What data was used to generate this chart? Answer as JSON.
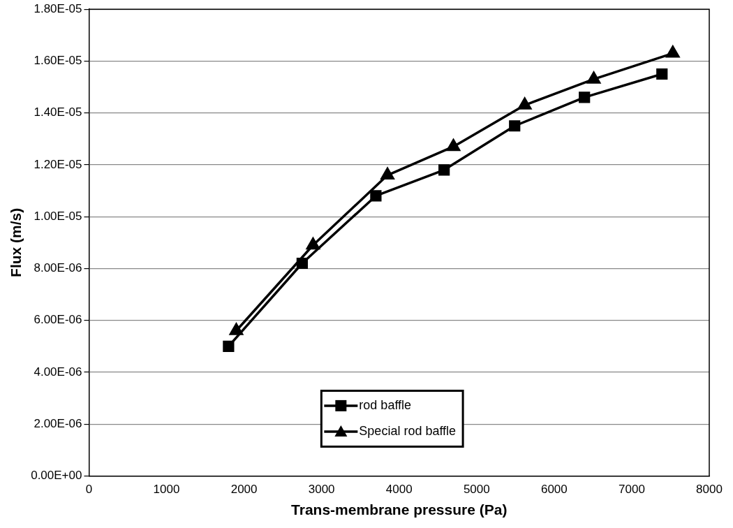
{
  "chart_data": {
    "type": "line",
    "xlabel": "Trans-membrane pressure (Pa)",
    "ylabel": "Flux (m/s)",
    "xlim": [
      0,
      8000
    ],
    "xticks": [
      0,
      1000,
      2000,
      3000,
      4000,
      5000,
      6000,
      7000,
      8000
    ],
    "ylim": [
      0,
      1.8e-05
    ],
    "yticks": [
      {
        "value": 0,
        "label": "0.00E+00"
      },
      {
        "value": 2e-06,
        "label": "2.00E-06"
      },
      {
        "value": 4e-06,
        "label": "4.00E-06"
      },
      {
        "value": 6e-06,
        "label": "6.00E-06"
      },
      {
        "value": 8e-06,
        "label": "8.00E-06"
      },
      {
        "value": 1e-05,
        "label": "1.00E-05"
      },
      {
        "value": 1.2e-05,
        "label": "1.20E-05"
      },
      {
        "value": 1.4e-05,
        "label": "1.40E-05"
      },
      {
        "value": 1.6e-05,
        "label": "1.60E-05"
      },
      {
        "value": 1.8e-05,
        "label": "1.80E-05"
      }
    ],
    "grid": "y",
    "legend": "bottom",
    "series": [
      {
        "name": "rod baffle",
        "color": "#000000",
        "marker": "square",
        "x": [
          1800,
          2750,
          3700,
          4580,
          5490,
          6390,
          7390
        ],
        "values": [
          5e-06,
          8.2e-06,
          1.08e-05,
          1.18e-05,
          1.35e-05,
          1.46e-05,
          1.55e-05
        ]
      },
      {
        "name": "Special rod baffle",
        "color": "#000000",
        "marker": "triangle",
        "x": [
          1900,
          2890,
          3850,
          4700,
          5620,
          6510,
          7530
        ],
        "values": [
          5.6e-06,
          8.9e-06,
          1.16e-05,
          1.27e-05,
          1.43e-05,
          1.53e-05,
          1.63e-05
        ]
      }
    ]
  }
}
